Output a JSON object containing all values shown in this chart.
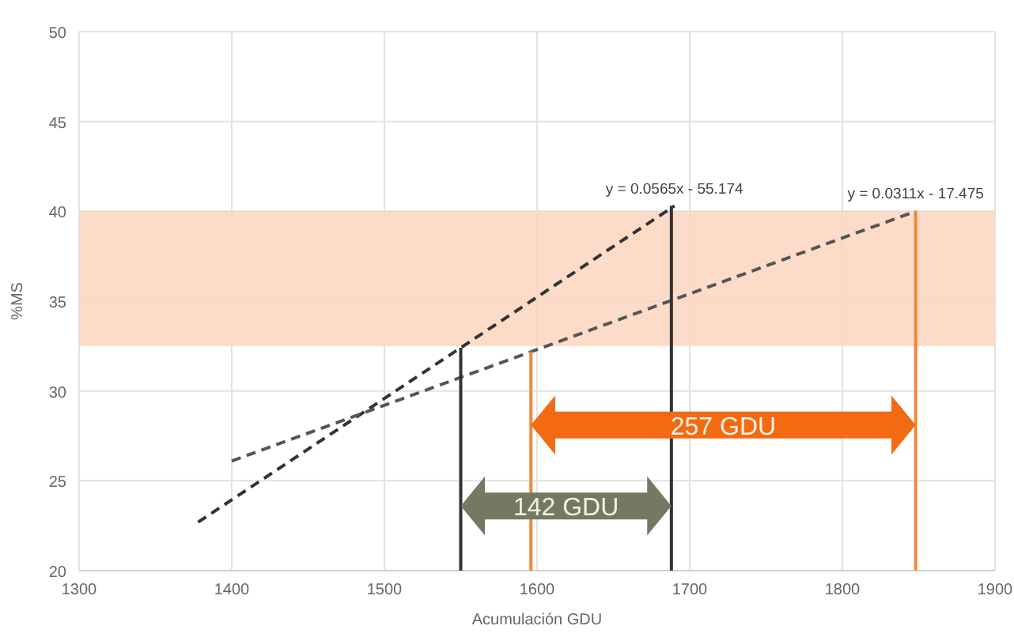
{
  "chart_data": {
    "type": "line",
    "xlabel": "Acumulación GDU",
    "ylabel": "%MS",
    "xlim": [
      1300,
      1900
    ],
    "xticks": [
      1300,
      1400,
      1500,
      1600,
      1700,
      1800,
      1900
    ],
    "ylim": [
      20,
      50
    ],
    "yticks": [
      20,
      25,
      30,
      35,
      40,
      45,
      50
    ],
    "grid": true,
    "marker": "none",
    "bands": [
      {
        "axis": "y",
        "from": 32.5,
        "to": 40,
        "color": "#fbd6be"
      }
    ],
    "series": [
      {
        "color": "#333333",
        "line_style": "dashed",
        "x": [
          1378,
          1690
        ],
        "values": [
          22.7,
          40.3
        ]
      },
      {
        "color": "#555555",
        "line_style": "dashed",
        "x": [
          1400,
          1848
        ],
        "values": [
          26.1,
          40
        ]
      },
      {
        "color": "#333333",
        "line_style": "solid",
        "x": [
          1550,
          1550
        ],
        "values": [
          20,
          32.4
        ]
      },
      {
        "color": "#333333",
        "line_style": "solid",
        "x": [
          1688,
          1688
        ],
        "values": [
          20,
          40.3
        ]
      },
      {
        "color": "#f0883a",
        "line_style": "solid",
        "x": [
          1596,
          1596
        ],
        "values": [
          20,
          32.2
        ]
      },
      {
        "color": "#f0883a",
        "line_style": "solid",
        "x": [
          1848,
          1848
        ],
        "values": [
          20,
          40
        ]
      }
    ],
    "annotations": [
      {
        "text": "y = 0.0565x - 55.174",
        "x": 1690,
        "y": 40.3
      },
      {
        "text": "y = 0.0311x - 17.475",
        "x": 1848,
        "y": 40
      },
      "142 GDU",
      "257 GDU"
    ]
  }
}
